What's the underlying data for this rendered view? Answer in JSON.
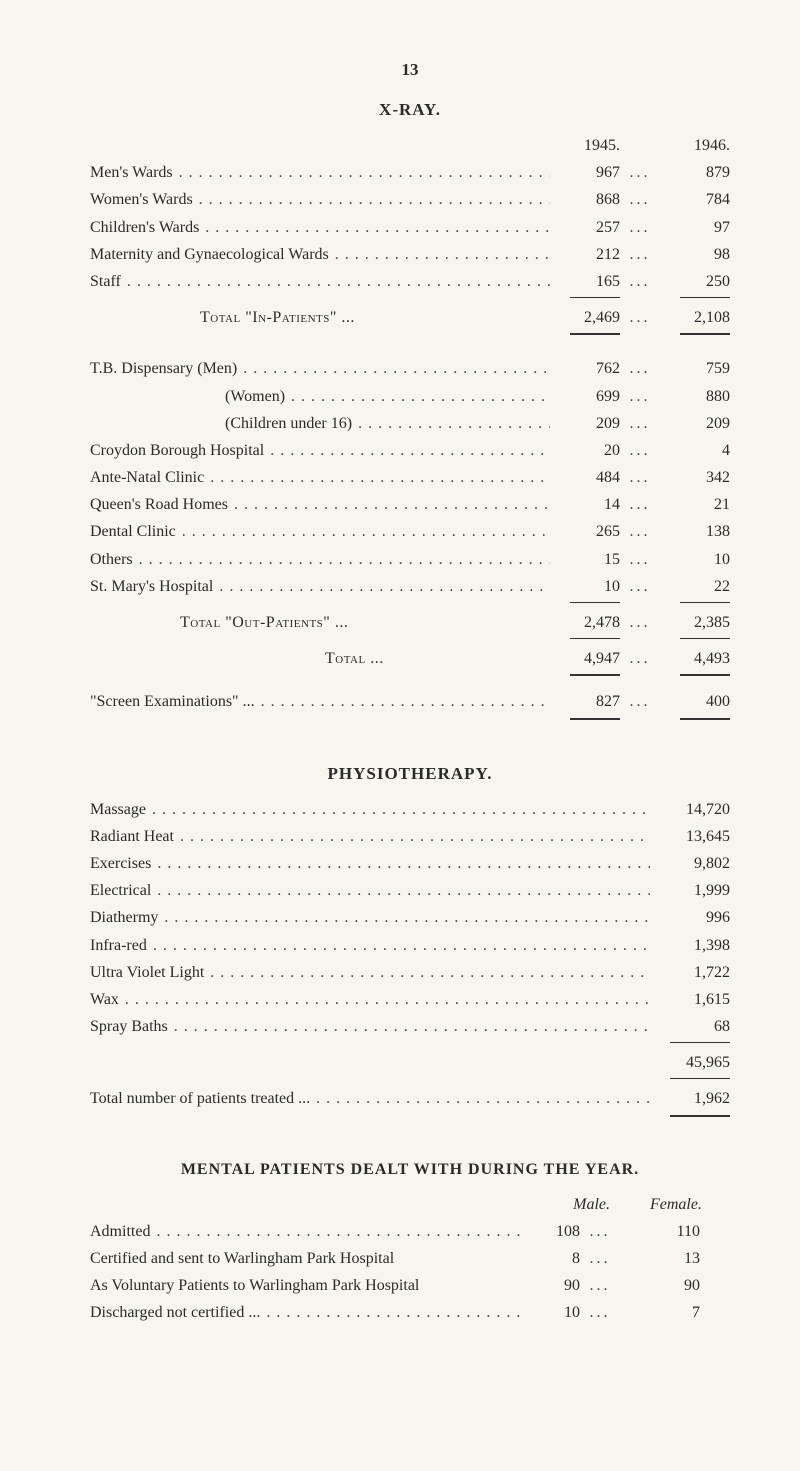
{
  "page_number": "13",
  "sections": {
    "xray": {
      "title": "X-RAY.",
      "year_a": "1945.",
      "year_b": "1946.",
      "in_patients": [
        {
          "label": "Men's Wards",
          "a": "967",
          "b": "879"
        },
        {
          "label": "Women's Wards",
          "a": "868",
          "b": "784"
        },
        {
          "label": "Children's Wards",
          "a": "257",
          "b": "97"
        },
        {
          "label": "Maternity and Gynaecological Wards",
          "a": "212",
          "b": "98"
        },
        {
          "label": "Staff",
          "a": "165",
          "b": "250"
        }
      ],
      "in_total_label": "Total \"In-Patients\" ...",
      "in_total": {
        "a": "2,469",
        "b": "2,108"
      },
      "out_patients": [
        {
          "label": "T.B. Dispensary (Men)",
          "a": "762",
          "b": "759"
        },
        {
          "label": "(Women)",
          "indent": true,
          "a": "699",
          "b": "880"
        },
        {
          "label": "(Children under 16)",
          "indent": true,
          "a": "209",
          "b": "209"
        },
        {
          "label": "Croydon Borough Hospital",
          "a": "20",
          "b": "4"
        },
        {
          "label": "Ante-Natal Clinic",
          "a": "484",
          "b": "342"
        },
        {
          "label": "Queen's Road Homes",
          "a": "14",
          "b": "21"
        },
        {
          "label": "Dental Clinic",
          "a": "265",
          "b": "138"
        },
        {
          "label": "Others",
          "a": "15",
          "b": "10"
        },
        {
          "label": "St. Mary's Hospital",
          "a": "10",
          "b": "22"
        }
      ],
      "out_total_label": "Total \"Out-Patients\" ...",
      "out_total": {
        "a": "2,478",
        "b": "2,385"
      },
      "grand_total_label": "Total ...",
      "grand_total": {
        "a": "4,947",
        "b": "4,493"
      },
      "screen_label": "\"Screen Examinations\" ...",
      "screen": {
        "a": "827",
        "b": "400"
      }
    },
    "physio": {
      "title": "PHYSIOTHERAPY.",
      "rows": [
        {
          "label": "Massage",
          "v": "14,720"
        },
        {
          "label": "Radiant Heat",
          "v": "13,645"
        },
        {
          "label": "Exercises",
          "v": "9,802"
        },
        {
          "label": "Electrical",
          "v": "1,999"
        },
        {
          "label": "Diathermy",
          "v": "996"
        },
        {
          "label": "Infra-red",
          "v": "1,398"
        },
        {
          "label": "Ultra Violet Light",
          "v": "1,722"
        },
        {
          "label": "Wax",
          "v": "1,615"
        },
        {
          "label": "Spray Baths",
          "v": "68"
        }
      ],
      "subtotal": "45,965",
      "total_label": "Total number of patients treated ...",
      "total": "1,962"
    },
    "mental": {
      "title": "MENTAL PATIENTS DEALT WITH DURING THE YEAR.",
      "col_a": "Male.",
      "col_b": "Female.",
      "rows": [
        {
          "label": "Admitted",
          "dots": true,
          "a": "108",
          "b": "110"
        },
        {
          "label": "Certified and sent to Warlingham Park Hospital",
          "a": "8",
          "b": "13"
        },
        {
          "label": "As Voluntary Patients to Warlingham Park Hospital",
          "a": "90",
          "b": "90"
        },
        {
          "label": "Discharged not certified ...",
          "dots": true,
          "a": "10",
          "b": "7"
        }
      ]
    }
  }
}
